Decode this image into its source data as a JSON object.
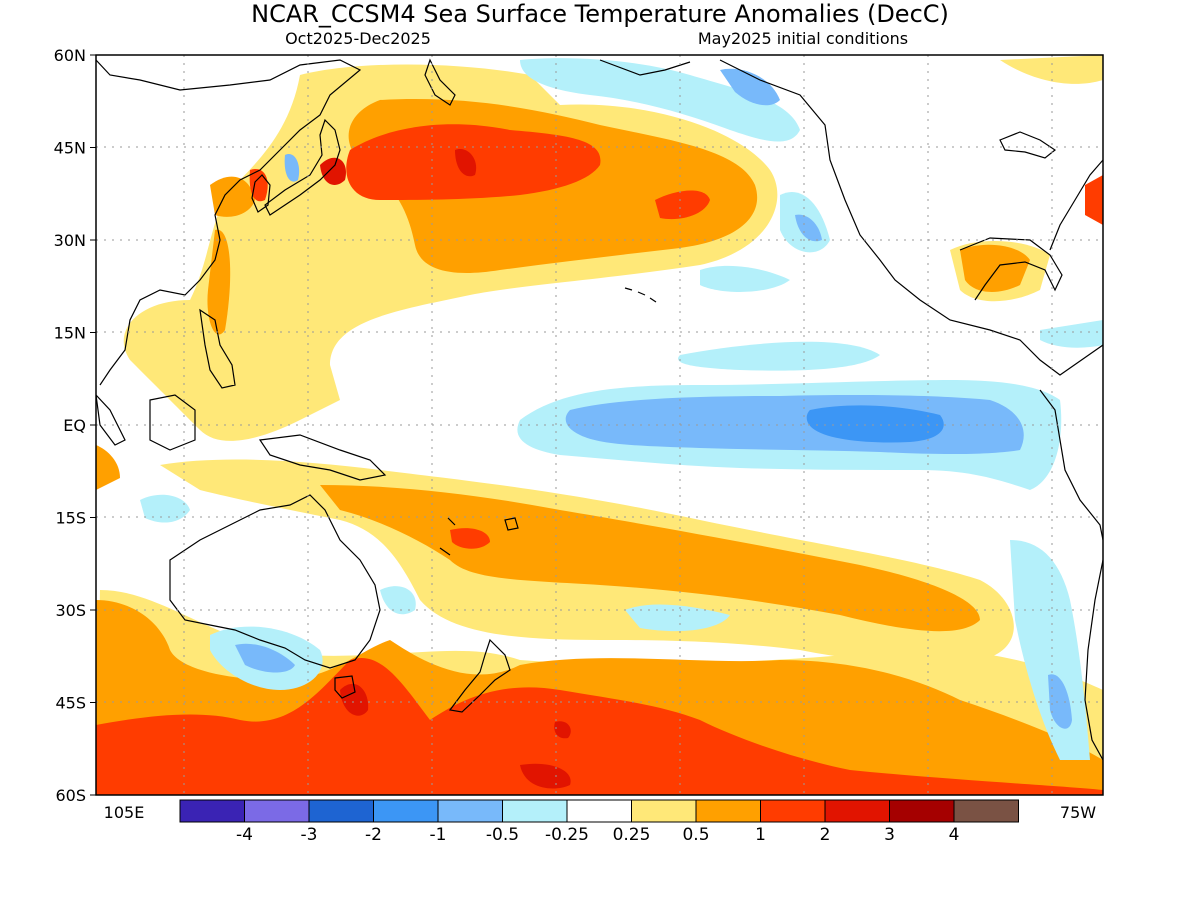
{
  "title": "NCAR_CCSM4 Sea Surface Temperature Anomalies (DecC)",
  "subtitle_left": "Oct2025-Dec2025",
  "subtitle_right": "May2025 initial conditions",
  "lat_labels": [
    "60N",
    "45N",
    "30N",
    "15N",
    "EQ",
    "15S",
    "30S",
    "45S",
    "60S"
  ],
  "lon_labels": [
    "105E",
    "75W"
  ],
  "colorbar": {
    "colors": [
      "#3a23b4",
      "#7b6ae6",
      "#1e64d2",
      "#3c96f5",
      "#78b9fa",
      "#b4f0fa",
      "#ffffff",
      "#ffe878",
      "#ffa000",
      "#ff3c00",
      "#e11400",
      "#a50000",
      "#7a5244"
    ],
    "ticks": [
      "-4",
      "-3",
      "-2",
      "-1",
      "-0.5",
      "-0.25",
      "0.25",
      "0.5",
      "1",
      "2",
      "3",
      "4"
    ]
  },
  "colors": {
    "land_outline": "#000000",
    "grid": "#9a9a9a",
    "frame": "#000000"
  }
}
